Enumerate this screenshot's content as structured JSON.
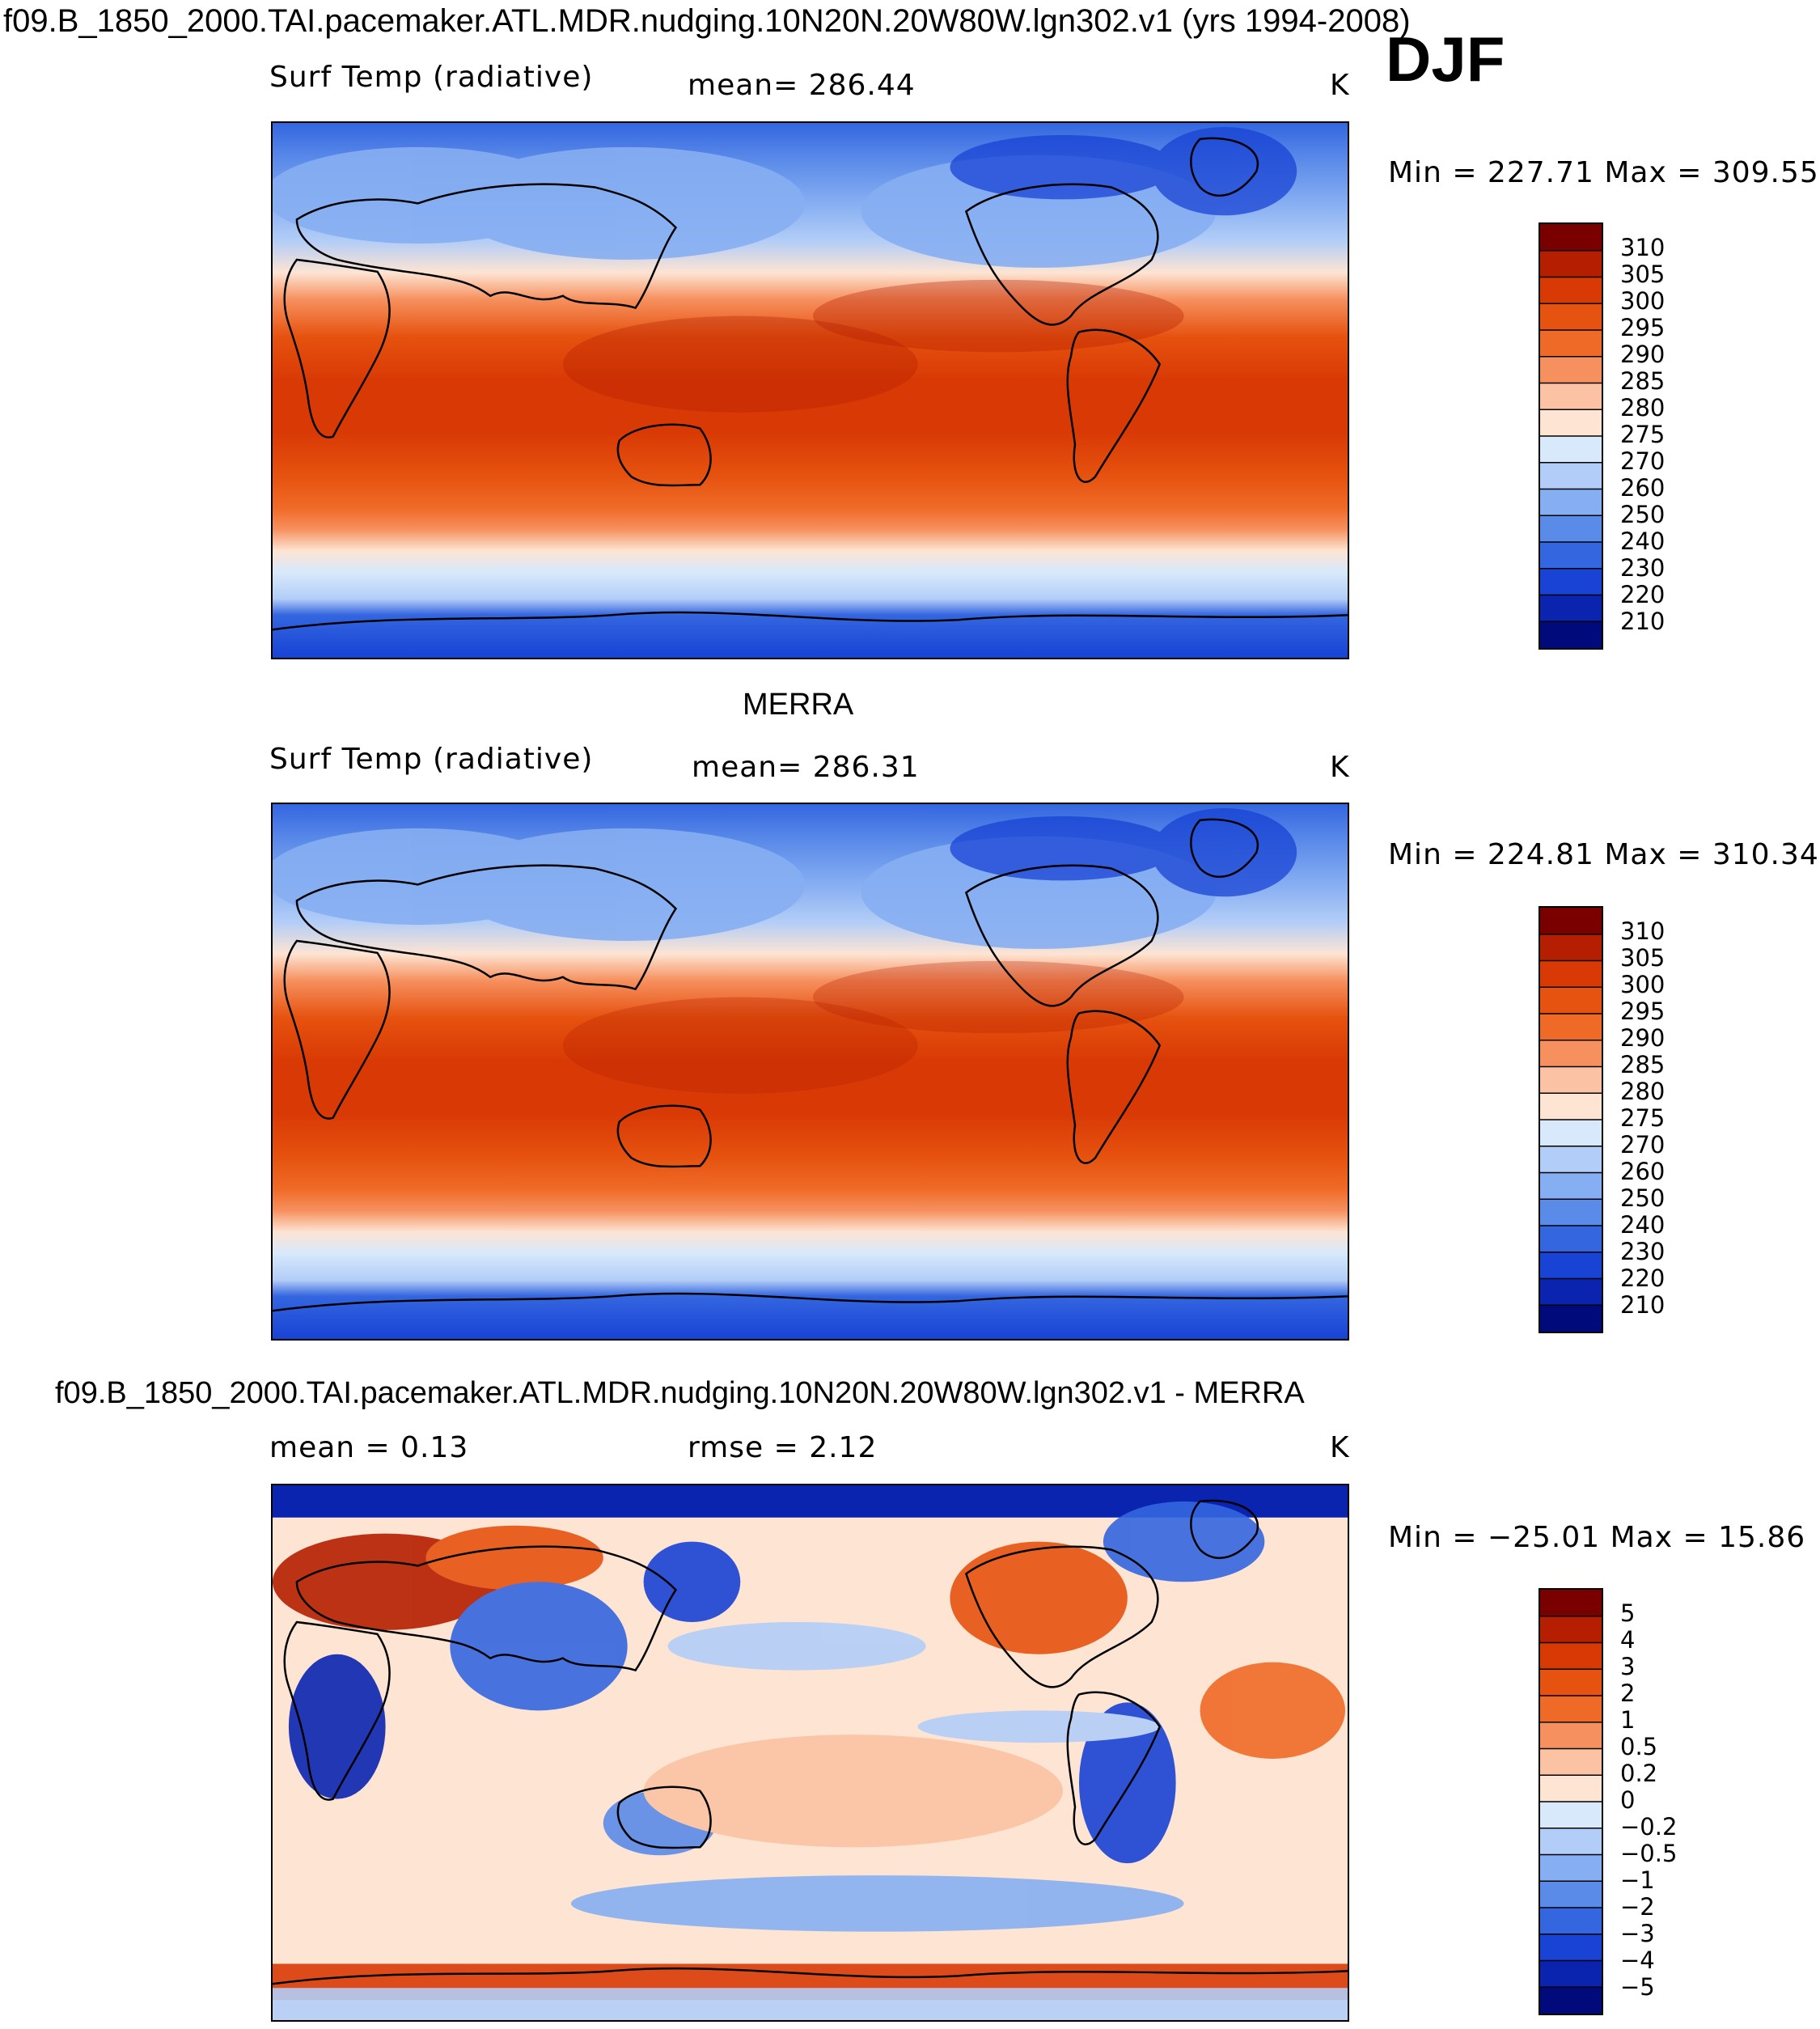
{
  "figure": {
    "title": "f09.B_1850_2000.TAI.pacemaker.ATL.MDR.nudging.10N20N.20W80W.lgn302.v1 (yrs 1994-2008)",
    "season": "DJF"
  },
  "panels": [
    {
      "heading": "",
      "left_label": "Surf Temp (radiative)",
      "center_label": "mean=  286.44",
      "units": "K",
      "minmax": "Min  =  227.71  Max  =  309.55"
    },
    {
      "heading": "MERRA",
      "left_label": "Surf Temp (radiative)",
      "center_label": "mean=  286.31",
      "units": "K",
      "minmax": "Min  =  224.81  Max  =  310.34"
    },
    {
      "heading": "f09.B_1850_2000.TAI.pacemaker.ATL.MDR.nudging.10N20N.20W80W.lgn302.v1 - MERRA",
      "left_label": "mean  =     0.13",
      "center_label": "rmse  =     2.12",
      "units": "K",
      "minmax": "Min  =  −25.01  Max  =    15.86"
    }
  ],
  "chart_data": [
    {
      "type": "heatmap",
      "title": "Surf Temp (radiative)",
      "units": "K",
      "mean": 286.44,
      "min": 227.71,
      "max": 309.55,
      "colorbar_levels": [
        "310",
        "305",
        "300",
        "295",
        "290",
        "285",
        "280",
        "275",
        "270",
        "260",
        "250",
        "240",
        "230",
        "220",
        "210"
      ],
      "colorbar_colors": [
        "#7a0000",
        "#b51e00",
        "#d93a05",
        "#e6520f",
        "#f06a27",
        "#f6905e",
        "#fbc2a3",
        "#fde4d3",
        "#d8e9fb",
        "#b2cdf7",
        "#86aef2",
        "#5b8be9",
        "#3466e0",
        "#1843d4",
        "#0a24b0",
        "#000a7a"
      ]
    },
    {
      "type": "heatmap",
      "title": "MERRA Surf Temp (radiative)",
      "units": "K",
      "mean": 286.31,
      "min": 224.81,
      "max": 310.34,
      "colorbar_levels": [
        "310",
        "305",
        "300",
        "295",
        "290",
        "285",
        "280",
        "275",
        "270",
        "260",
        "250",
        "240",
        "230",
        "220",
        "210"
      ],
      "colorbar_colors": [
        "#7a0000",
        "#b51e00",
        "#d93a05",
        "#e6520f",
        "#f06a27",
        "#f6905e",
        "#fbc2a3",
        "#fde4d3",
        "#d8e9fb",
        "#b2cdf7",
        "#86aef2",
        "#5b8be9",
        "#3466e0",
        "#1843d4",
        "#0a24b0",
        "#000a7a"
      ]
    },
    {
      "type": "heatmap",
      "title": "Model - MERRA difference",
      "units": "K",
      "mean": 0.13,
      "rmse": 2.12,
      "min": -25.01,
      "max": 15.86,
      "colorbar_levels": [
        "5",
        "4",
        "3",
        "2",
        "1",
        "0.5",
        "0.2",
        "0",
        "−0.2",
        "−0.5",
        "−1",
        "−2",
        "−3",
        "−4",
        "−5"
      ],
      "colorbar_colors": [
        "#7a0000",
        "#b51e00",
        "#d93a05",
        "#e6520f",
        "#f06a27",
        "#f6905e",
        "#fbc2a3",
        "#fde4d3",
        "#d8e9fb",
        "#b2cdf7",
        "#86aef2",
        "#5b8be9",
        "#3466e0",
        "#1843d4",
        "#0a24b0",
        "#000a7a"
      ]
    }
  ]
}
